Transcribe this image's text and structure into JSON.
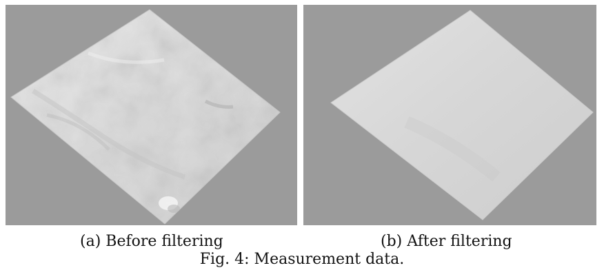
{
  "figure": {
    "panels": [
      {
        "label": "(a) Before filtering",
        "surface": "noisy-measured-surface"
      },
      {
        "label": "(b) After filtering",
        "surface": "smoothed-measured-surface"
      }
    ],
    "caption": "Fig. 4: Measurement data.",
    "colors": {
      "background": "#9b9b9b",
      "surface": "#d8d8d8",
      "surface_light": "#e6e6e6",
      "surface_shadow": "#b8b8b8"
    }
  }
}
